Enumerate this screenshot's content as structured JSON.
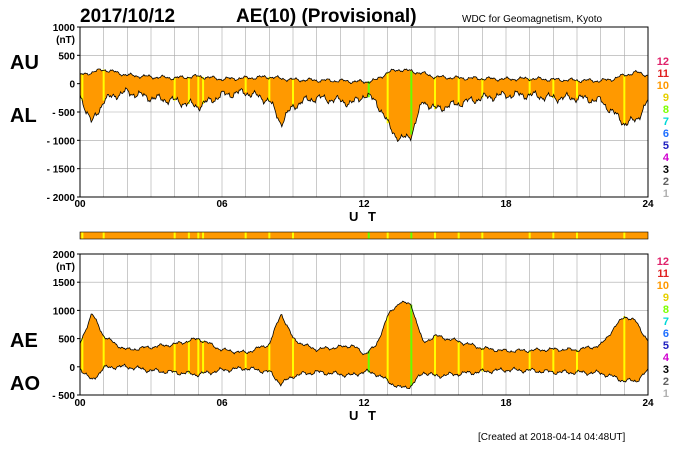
{
  "header": {
    "date": "2017/10/12",
    "index": "AE(10) (Provisional)",
    "credit": "WDC for Geomagnetism, Kyoto"
  },
  "footer": {
    "created": "[Created at 2018-04-14 04:48UT]"
  },
  "legend": {
    "entries": [
      {
        "label": "12",
        "color": "#e0206a"
      },
      {
        "label": "11",
        "color": "#e02020"
      },
      {
        "label": "10",
        "color": "#ff9900"
      },
      {
        "label": "9",
        "color": "#e6d000"
      },
      {
        "label": "8",
        "color": "#7cff00"
      },
      {
        "label": "7",
        "color": "#00d8d8"
      },
      {
        "label": "6",
        "color": "#1e6eff"
      },
      {
        "label": "5",
        "color": "#2020c0"
      },
      {
        "label": "4",
        "color": "#d000d0"
      },
      {
        "label": "3",
        "color": "#000000"
      },
      {
        "label": "2",
        "color": "#606060"
      },
      {
        "label": "1",
        "color": "#b0b0b0"
      }
    ]
  },
  "colors": {
    "fill": "#ff9900",
    "station_yellow": "#ffff00",
    "station_green": "#66ff00"
  },
  "chart_data": [
    {
      "type": "area",
      "panel": "AU-AL",
      "label_upper": "AU",
      "label_lower": "AL",
      "unit": "(nT)",
      "xlabel": "U T",
      "xlim": [
        0,
        24
      ],
      "xticks": [
        "00",
        "06",
        "12",
        "18",
        "24"
      ],
      "ylim": [
        -2000,
        1000
      ],
      "yticks": [
        "1000",
        "500",
        "0",
        "- 500",
        "- 1000",
        "- 1500",
        "- 2000"
      ],
      "yvalues": [
        1000,
        500,
        0,
        -500,
        -1000,
        -1500,
        -2000
      ],
      "grid": true,
      "series": [
        {
          "name": "AU",
          "x": [
            0,
            0.5,
            1,
            1.5,
            2,
            3,
            4,
            5,
            6,
            7,
            8,
            8.5,
            9,
            10,
            11,
            11.5,
            12,
            12.5,
            13,
            13.5,
            14,
            14.5,
            15,
            16,
            17,
            18,
            19,
            20,
            21,
            22,
            22.5,
            23,
            23.5,
            24
          ],
          "values": [
            150,
            200,
            250,
            200,
            150,
            120,
            100,
            130,
            80,
            100,
            120,
            90,
            70,
            60,
            50,
            40,
            30,
            60,
            200,
            250,
            220,
            180,
            120,
            100,
            90,
            80,
            90,
            70,
            60,
            50,
            80,
            150,
            200,
            150
          ]
        },
        {
          "name": "AL",
          "x": [
            0,
            0.5,
            1,
            1.5,
            2,
            3,
            4,
            5,
            6,
            7,
            8,
            8.5,
            9,
            9.5,
            10,
            11,
            11.5,
            12,
            12.5,
            13,
            13.5,
            14,
            14.5,
            15,
            16,
            17,
            18,
            19,
            20,
            21,
            22,
            22.5,
            23,
            23.5,
            24
          ],
          "values": [
            -200,
            -700,
            -300,
            -200,
            -150,
            -250,
            -300,
            -400,
            -200,
            -150,
            -300,
            -700,
            -400,
            -300,
            -250,
            -300,
            -350,
            -200,
            -300,
            -700,
            -1000,
            -900,
            -300,
            -450,
            -350,
            -250,
            -200,
            -200,
            -250,
            -250,
            -300,
            -500,
            -700,
            -650,
            -300
          ]
        }
      ]
    },
    {
      "type": "area",
      "panel": "AE-AO",
      "label_upper": "AE",
      "label_lower": "AO",
      "unit": "(nT)",
      "xlabel": "U T",
      "xlim": [
        0,
        24
      ],
      "xticks": [
        "00",
        "06",
        "12",
        "18",
        "24"
      ],
      "ylim": [
        -500,
        2000
      ],
      "yticks": [
        "2000",
        "1500",
        "1000",
        "500",
        "0",
        "- 500"
      ],
      "yvalues": [
        2000,
        1500,
        1000,
        500,
        0,
        -500
      ],
      "grid": true,
      "series": [
        {
          "name": "AE",
          "x": [
            0,
            0.5,
            1,
            1.5,
            2,
            3,
            4,
            5,
            6,
            7,
            8,
            8.5,
            9,
            9.5,
            10,
            11,
            11.5,
            12,
            12.5,
            13,
            13.5,
            14,
            14.5,
            15,
            16,
            17,
            18,
            19,
            20,
            21,
            22,
            22.5,
            23,
            23.5,
            24
          ],
          "values": [
            400,
            950,
            550,
            400,
            300,
            350,
            400,
            500,
            300,
            250,
            400,
            950,
            500,
            380,
            310,
            350,
            380,
            230,
            360,
            900,
            1150,
            1100,
            420,
            550,
            450,
            330,
            280,
            290,
            310,
            300,
            380,
            650,
            900,
            800,
            450
          ]
        },
        {
          "name": "AO",
          "x": [
            0,
            0.5,
            1,
            1.5,
            2,
            3,
            4,
            5,
            6,
            7,
            8,
            8.5,
            9,
            9.5,
            10,
            11,
            11.5,
            12,
            12.5,
            13,
            13.5,
            14,
            14.5,
            15,
            16,
            17,
            18,
            19,
            20,
            21,
            22,
            22.5,
            23,
            23.5,
            24
          ],
          "values": [
            -20,
            -250,
            -20,
            0,
            0,
            -65,
            -100,
            -135,
            -60,
            -25,
            -90,
            -305,
            -165,
            -120,
            -95,
            -130,
            -155,
            -85,
            -120,
            -250,
            -375,
            -340,
            -90,
            -165,
            -125,
            -85,
            -55,
            -65,
            -95,
            -100,
            -110,
            -175,
            -250,
            -250,
            -75
          ]
        }
      ]
    }
  ],
  "station_bar": {
    "yellow_hours": [
      0.1,
      1.0,
      4.0,
      4.6,
      5.0,
      5.2,
      7.0,
      8.0,
      9.0,
      13.0,
      15.0,
      16.0,
      17.0,
      19.0,
      20.0,
      21.0,
      23.0
    ],
    "green_hours": [
      12.2,
      14.0
    ]
  }
}
